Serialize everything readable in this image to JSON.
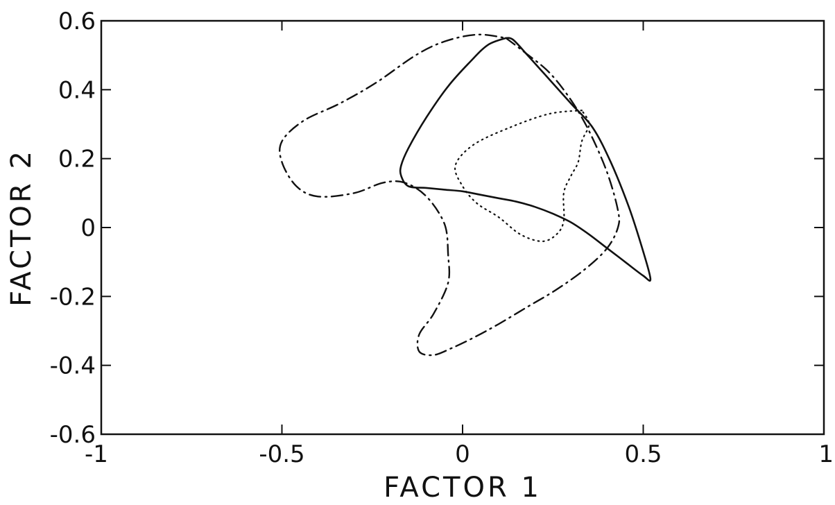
{
  "chart_data": {
    "type": "line",
    "title": "",
    "xlabel": "FACTOR 1",
    "ylabel": "FACTOR 2",
    "xlim": [
      -1,
      1
    ],
    "ylim": [
      -0.6,
      0.6
    ],
    "grid": false,
    "x_ticks": [
      -1,
      -0.5,
      0,
      0.5,
      1
    ],
    "x_tick_labels": [
      "-1",
      "-0.5",
      "0",
      "0.5",
      "1"
    ],
    "y_ticks": [
      -0.6,
      -0.4,
      -0.2,
      0,
      0.2,
      0.4,
      0.6
    ],
    "y_tick_labels": [
      "-0.6",
      "-0.4",
      "-0.2",
      "0",
      "0.2",
      "0.4",
      "0.6"
    ],
    "series": [
      {
        "line_style": "solid",
        "points": [
          [
            0.12,
            0.55
          ],
          [
            0.07,
            0.53
          ],
          [
            0.02,
            0.48
          ],
          [
            -0.04,
            0.41
          ],
          [
            -0.1,
            0.32
          ],
          [
            -0.15,
            0.23
          ],
          [
            -0.17,
            0.18
          ],
          [
            -0.17,
            0.15
          ],
          [
            -0.15,
            0.12
          ],
          [
            -0.1,
            0.115
          ],
          [
            -0.05,
            0.11
          ],
          [
            0.0,
            0.105
          ],
          [
            0.05,
            0.095
          ],
          [
            0.1,
            0.085
          ],
          [
            0.15,
            0.075
          ],
          [
            0.2,
            0.06
          ],
          [
            0.25,
            0.04
          ],
          [
            0.3,
            0.015
          ],
          [
            0.35,
            -0.02
          ],
          [
            0.4,
            -0.06
          ],
          [
            0.45,
            -0.1
          ],
          [
            0.5,
            -0.14
          ],
          [
            0.52,
            -0.15
          ],
          [
            0.5,
            -0.07
          ],
          [
            0.46,
            0.06
          ],
          [
            0.41,
            0.19
          ],
          [
            0.36,
            0.29
          ],
          [
            0.3,
            0.36
          ],
          [
            0.24,
            0.43
          ],
          [
            0.18,
            0.5
          ],
          [
            0.14,
            0.545
          ],
          [
            0.12,
            0.55
          ]
        ]
      },
      {
        "line_style": "dashed",
        "points": [
          [
            0.12,
            0.55
          ],
          [
            0.17,
            0.51
          ],
          [
            0.24,
            0.45
          ],
          [
            0.3,
            0.37
          ],
          [
            0.35,
            0.28
          ],
          [
            0.4,
            0.16
          ],
          [
            0.43,
            0.05
          ],
          [
            0.43,
            0.0
          ],
          [
            0.4,
            -0.06
          ],
          [
            0.34,
            -0.12
          ],
          [
            0.26,
            -0.18
          ],
          [
            0.18,
            -0.23
          ],
          [
            0.1,
            -0.28
          ],
          [
            0.03,
            -0.32
          ],
          [
            -0.03,
            -0.35
          ],
          [
            -0.08,
            -0.37
          ],
          [
            -0.12,
            -0.36
          ],
          [
            -0.12,
            -0.31
          ],
          [
            -0.08,
            -0.25
          ],
          [
            -0.04,
            -0.16
          ],
          [
            -0.04,
            -0.08
          ],
          [
            -0.05,
            0.01
          ],
          [
            -0.1,
            0.09
          ],
          [
            -0.16,
            0.13
          ],
          [
            -0.22,
            0.13
          ],
          [
            -0.3,
            0.1
          ],
          [
            -0.4,
            0.09
          ],
          [
            -0.46,
            0.12
          ],
          [
            -0.5,
            0.19
          ],
          [
            -0.5,
            0.25
          ],
          [
            -0.44,
            0.31
          ],
          [
            -0.34,
            0.36
          ],
          [
            -0.24,
            0.42
          ],
          [
            -0.13,
            0.5
          ],
          [
            -0.05,
            0.54
          ],
          [
            0.04,
            0.56
          ],
          [
            0.12,
            0.55
          ]
        ]
      },
      {
        "line_style": "dotted",
        "points": [
          [
            0.33,
            0.34
          ],
          [
            0.24,
            0.33
          ],
          [
            0.13,
            0.29
          ],
          [
            0.03,
            0.24
          ],
          [
            -0.02,
            0.18
          ],
          [
            0.0,
            0.12
          ],
          [
            0.04,
            0.07
          ],
          [
            0.1,
            0.03
          ],
          [
            0.16,
            -0.02
          ],
          [
            0.22,
            -0.04
          ],
          [
            0.26,
            -0.02
          ],
          [
            0.28,
            0.02
          ],
          [
            0.28,
            0.1
          ],
          [
            0.3,
            0.15
          ],
          [
            0.32,
            0.19
          ],
          [
            0.33,
            0.25
          ],
          [
            0.35,
            0.3
          ],
          [
            0.33,
            0.34
          ]
        ]
      }
    ]
  }
}
